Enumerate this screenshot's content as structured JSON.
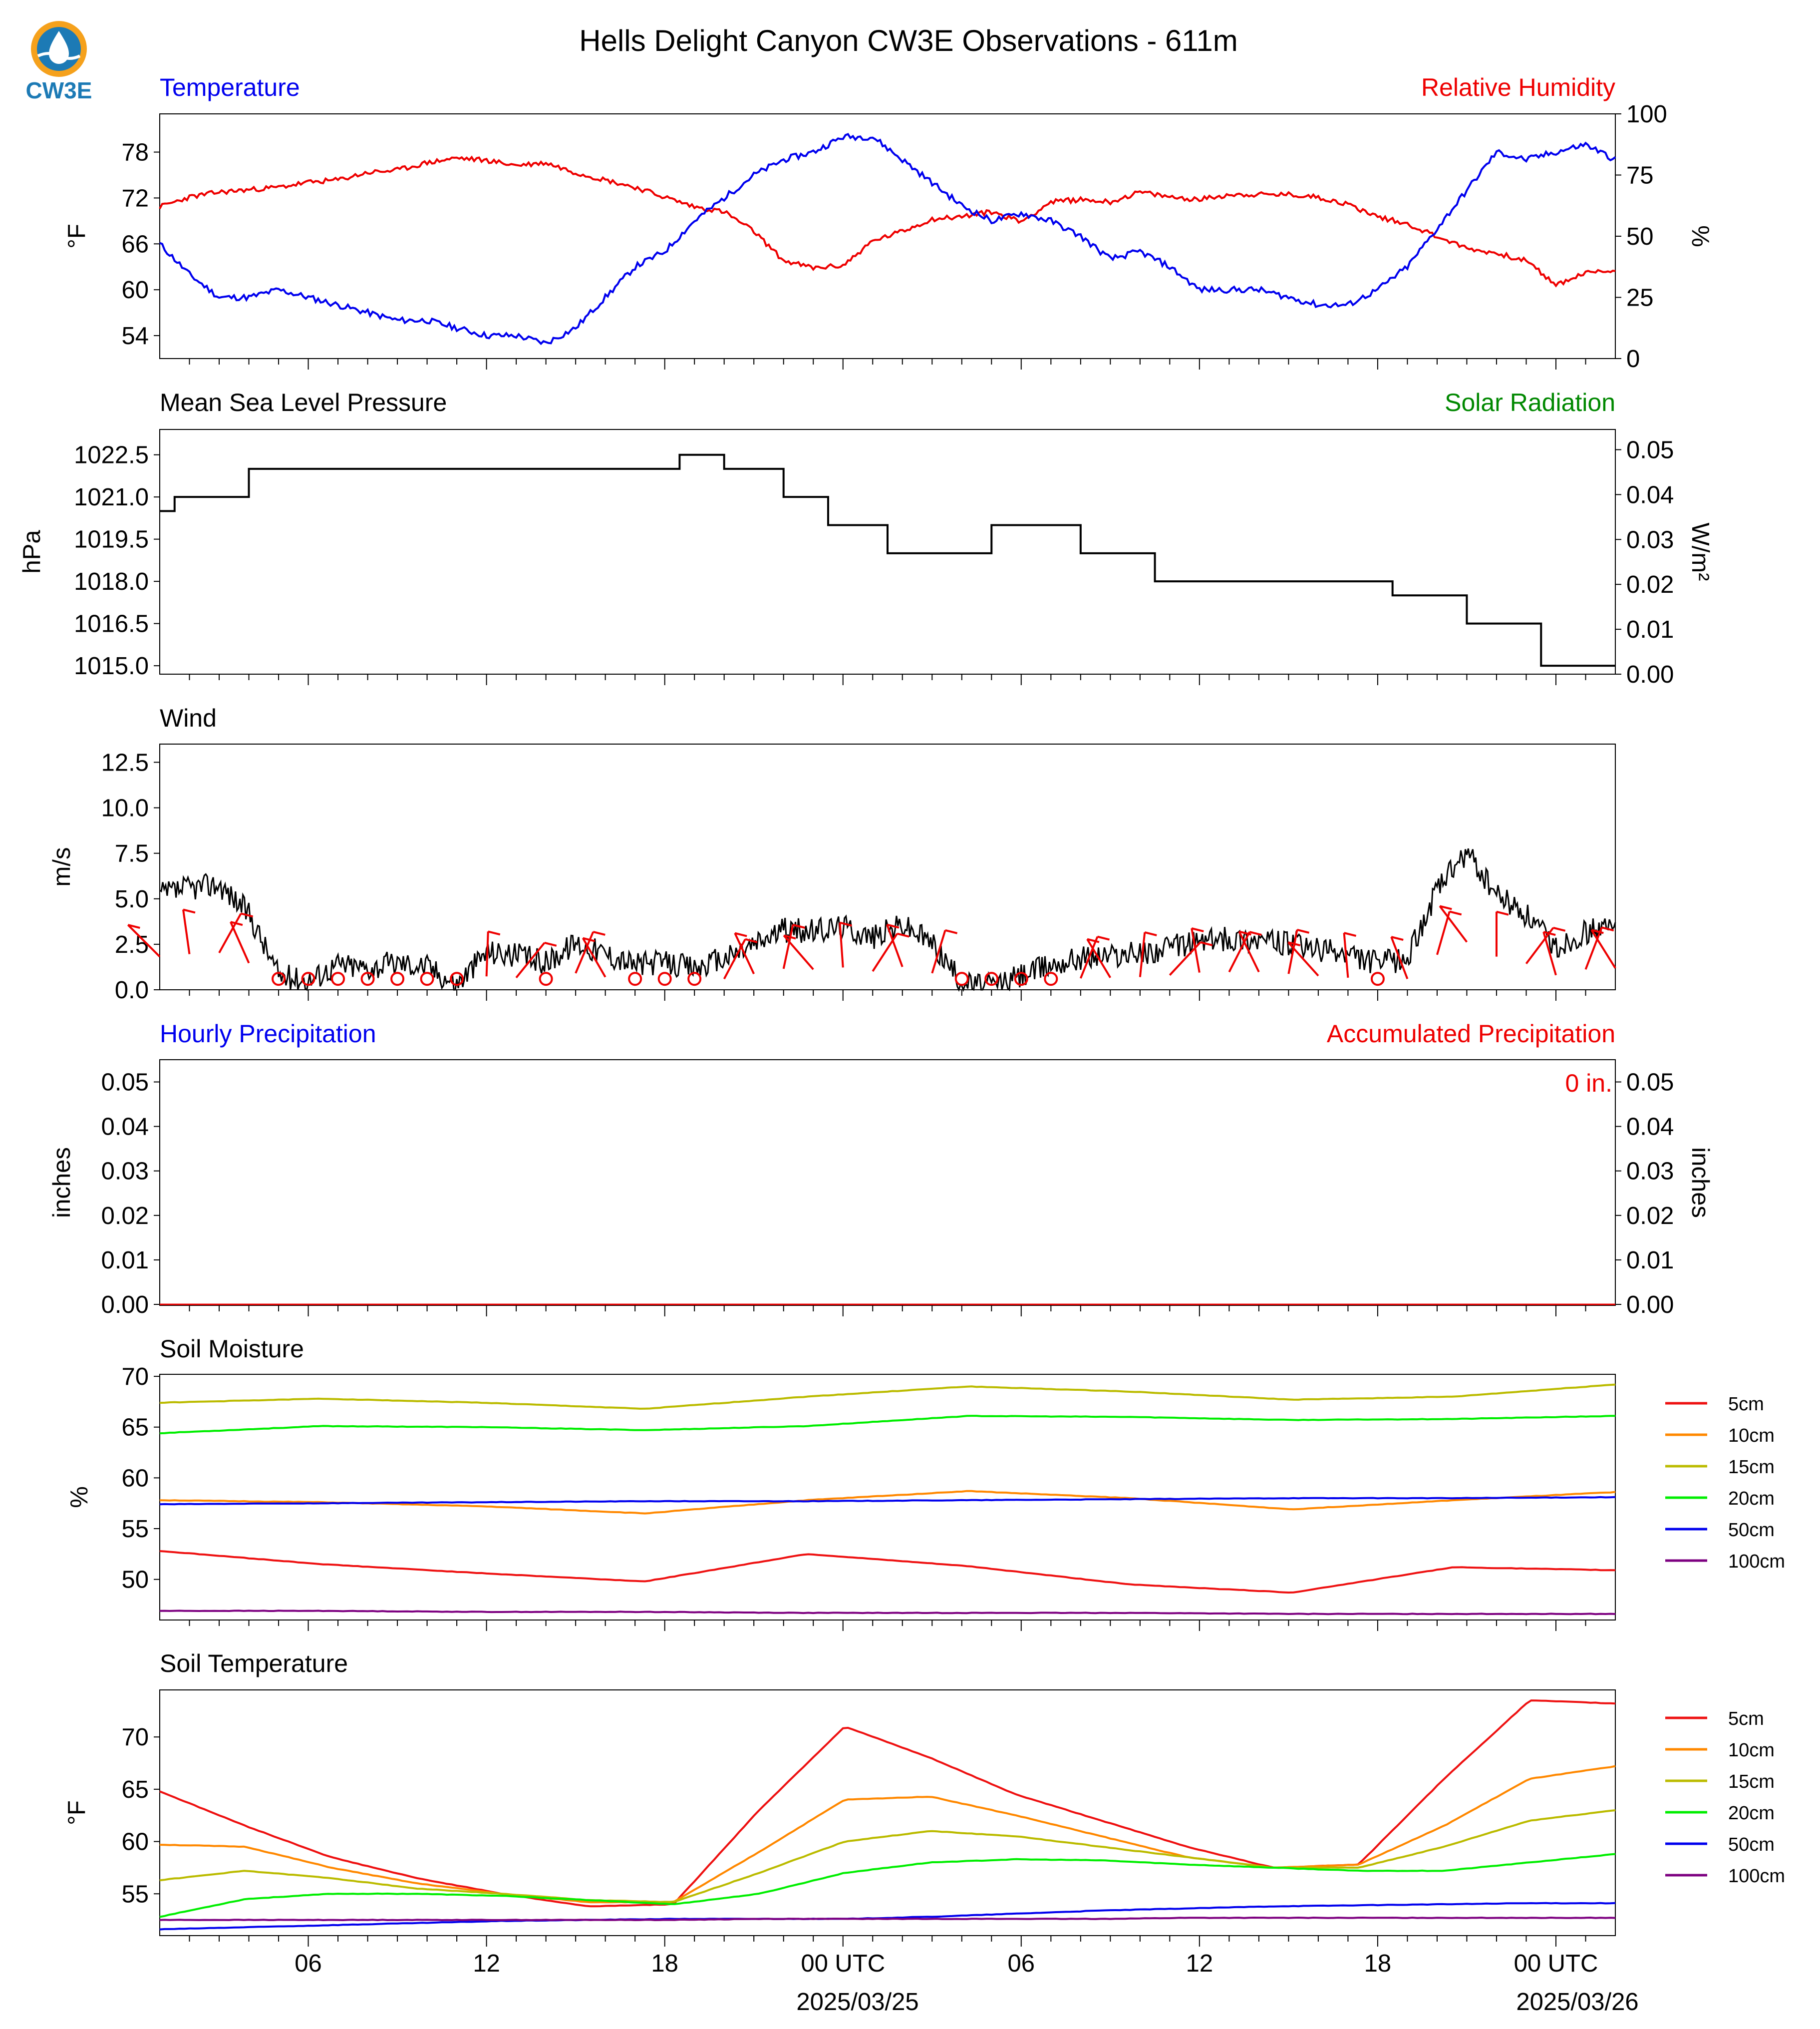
{
  "title": "Hells Delight Canyon CW3E Observations - 611m",
  "logo_text": "CW3E",
  "x_axis": {
    "tick_labels": [
      "06",
      "12",
      "18",
      "00 UTC",
      "06",
      "12",
      "18",
      "00 UTC"
    ],
    "date_labels": [
      "2025/03/25",
      "2025/03/26"
    ]
  },
  "colors": {
    "blue": "#0000ee",
    "red": "#ee0000",
    "green": "#008800",
    "black": "#000000"
  },
  "chart_data": [
    {
      "type": "line",
      "title_left": "Temperature",
      "title_right": "Relative Humidity",
      "ylabel": "°F",
      "ylabel2": "%",
      "ylim": [
        51,
        83
      ],
      "ylim2": [
        0,
        100
      ],
      "yticks": [
        54,
        60,
        66,
        72,
        78
      ],
      "yticks2": [
        0,
        25,
        50,
        75,
        100
      ],
      "x_hours": [
        0,
        1,
        2,
        3,
        4,
        5,
        6,
        7,
        8,
        9,
        10,
        11,
        12,
        13,
        14,
        15,
        16,
        17,
        18,
        19,
        20,
        21,
        22,
        23,
        24,
        25,
        26,
        27,
        28,
        29,
        30,
        31,
        32,
        33,
        34,
        35,
        36,
        37,
        38,
        39,
        40,
        41,
        42,
        43,
        44,
        45,
        46,
        47,
        48,
        49
      ],
      "series": [
        {
          "name": "Temperature",
          "color": "#0000ee",
          "axis": "left",
          "values": [
            66,
            62,
            59,
            59,
            60,
            59,
            58,
            57,
            56,
            56,
            55,
            54,
            54,
            53,
            55,
            59,
            63,
            65,
            69,
            72,
            75,
            77,
            78,
            80,
            80,
            77,
            74,
            71,
            69,
            70,
            69,
            67,
            64,
            65,
            63,
            60,
            60,
            60,
            59,
            58,
            58,
            60,
            63,
            68,
            73,
            78,
            77,
            78,
            79,
            77
          ]
        },
        {
          "name": "Relative Humidity",
          "color": "#ee0000",
          "axis": "right",
          "values": [
            62,
            66,
            68,
            69,
            70,
            72,
            73,
            76,
            77,
            80,
            82,
            81,
            79,
            80,
            76,
            73,
            70,
            66,
            62,
            60,
            52,
            40,
            37,
            38,
            48,
            52,
            57,
            58,
            60,
            56,
            64,
            65,
            64,
            68,
            66,
            65,
            67,
            67,
            67,
            66,
            63,
            58,
            55,
            50,
            45,
            43,
            40,
            30,
            35,
            36
          ]
        }
      ]
    },
    {
      "type": "line",
      "title_left": "Mean Sea Level Pressure",
      "title_right": "Solar Radiation",
      "ylabel": "hPa",
      "ylabel2": "W/m²",
      "ylim": [
        1014.7,
        1023.4
      ],
      "ylim2": [
        0,
        0.0545
      ],
      "yticks": [
        "1015.0",
        "1016.5",
        "1018.0",
        "1019.5",
        "1021.0",
        "1022.5"
      ],
      "yticks2": [
        "0.00",
        "0.01",
        "0.02",
        "0.03",
        "0.04",
        "0.05"
      ],
      "series": [
        {
          "name": "Mean Sea Level Pressure",
          "color": "#000000",
          "steps": [
            [
              0,
              1020.5
            ],
            [
              0.5,
              1021.0
            ],
            [
              3,
              1022.0
            ],
            [
              17.5,
              1022.5
            ],
            [
              19,
              1022.0
            ],
            [
              21,
              1021.0
            ],
            [
              22.5,
              1020.0
            ],
            [
              24.5,
              1019.0
            ],
            [
              28,
              1020.0
            ],
            [
              31,
              1019.0
            ],
            [
              33.5,
              1018.0
            ],
            [
              41.5,
              1017.5
            ],
            [
              44,
              1016.5
            ],
            [
              46.5,
              1015.0
            ],
            [
              49,
              1015.0
            ]
          ]
        }
      ]
    },
    {
      "type": "line",
      "title_left": "Wind",
      "ylabel": "m/s",
      "ylim": [
        0,
        13.5
      ],
      "yticks": [
        "0.0",
        "2.5",
        "5.0",
        "7.5",
        "10.0",
        "12.5"
      ],
      "series": [
        {
          "name": "Wind speed",
          "color": "#000000",
          "values": [
            5.2,
            5.6,
            5.8,
            4.2,
            0.8,
            0.5,
            1.4,
            1.2,
            1.5,
            1.3,
            0.3,
            2.1,
            1.9,
            1.5,
            2.6,
            2.0,
            1.4,
            1.5,
            1.2,
            1.7,
            2.5,
            3.3,
            3.2,
            3.5,
            2.9,
            3.6,
            2.6,
            0.4,
            0.2,
            0.8,
            1.4,
            1.8,
            1.9,
            2.0,
            2.3,
            2.7,
            2.8,
            2.8,
            2.5,
            2.2,
            1.9,
            1.5,
            1.7,
            5.5,
            7.5,
            5.2,
            4.1,
            2.3,
            3.2,
            3.4
          ]
        }
      ]
    },
    {
      "type": "bar",
      "title_left": "Hourly Precipitation",
      "title_right": "Accumulated Precipitation",
      "accumulated_label": "0 in.",
      "ylabel": "inches",
      "ylabel2": "inches",
      "ylim": [
        0,
        0.055
      ],
      "yticks": [
        "0.00",
        "0.01",
        "0.02",
        "0.03",
        "0.04",
        "0.05"
      ],
      "values": "all 0.00"
    },
    {
      "type": "line",
      "title_left": "Soil Moisture",
      "ylabel": "%",
      "ylim": [
        46,
        70.2
      ],
      "yticks": [
        50,
        55,
        60,
        65,
        70
      ],
      "legend": [
        "5cm",
        "10cm",
        "15cm",
        "20cm",
        "50cm",
        "100cm"
      ],
      "series": [
        {
          "name": "5cm",
          "color": "#ee1111",
          "values": [
            52.8,
            51.5,
            50.6,
            49.8,
            52.5,
            51.3,
            49.5,
            48.7,
            51.2,
            50.9
          ]
        },
        {
          "name": "10cm",
          "color": "#ff8800",
          "values": [
            57.8,
            57.6,
            57.2,
            56.5,
            57.8,
            58.7,
            58.0,
            56.9,
            57.8,
            58.6
          ]
        },
        {
          "name": "15cm",
          "color": "#bbbb00",
          "values": [
            67.4,
            67.8,
            67.4,
            66.8,
            68.0,
            69.0,
            68.5,
            67.7,
            68.0,
            69.2
          ]
        },
        {
          "name": "20cm",
          "color": "#00ee00",
          "values": [
            64.4,
            65.1,
            65.0,
            64.7,
            65.1,
            66.1,
            66.0,
            65.7,
            65.8,
            66.1
          ]
        },
        {
          "name": "50cm",
          "color": "#0000ee",
          "values": [
            57.4,
            57.5,
            57.6,
            57.7,
            57.7,
            57.8,
            57.9,
            58.0,
            58.0,
            58.1
          ]
        },
        {
          "name": "100cm",
          "color": "#7d0080",
          "values": [
            46.9,
            46.9,
            46.8,
            46.8,
            46.7,
            46.7,
            46.7,
            46.6,
            46.6,
            46.6
          ]
        }
      ]
    },
    {
      "type": "line",
      "title_left": "Soil Temperature",
      "ylabel": "°F",
      "ylim": [
        51,
        74.5
      ],
      "yticks": [
        55,
        60,
        65,
        70
      ],
      "legend": [
        "5cm",
        "10cm",
        "15cm",
        "20cm",
        "50cm",
        "100cm"
      ],
      "series": [
        {
          "name": "5cm",
          "color": "#ee1111",
          "values": [
            64.8,
            61.5,
            58.5,
            56.5,
            55.0,
            53.8,
            54.0,
            63.0,
            71.0,
            68.0,
            64.5,
            62.0,
            59.5,
            57.5,
            57.8,
            66.0,
            73.5,
            73.2
          ]
        },
        {
          "name": "10cm",
          "color": "#ff8800",
          "values": [
            59.7,
            59.5,
            57.5,
            56.0,
            55.0,
            54.2,
            54.2,
            59.0,
            64.0,
            64.3,
            62.5,
            60.5,
            58.5,
            57.5,
            57.8,
            61.5,
            66.0,
            67.2
          ]
        },
        {
          "name": "15cm",
          "color": "#bbbb00",
          "values": [
            56.3,
            57.2,
            56.5,
            55.5,
            55.0,
            54.4,
            54.2,
            57.0,
            60.0,
            61.0,
            60.5,
            59.5,
            58.5,
            57.5,
            57.5,
            59.5,
            62.0,
            63.0
          ]
        },
        {
          "name": "20cm",
          "color": "#00ee00",
          "values": [
            52.8,
            54.5,
            55.0,
            55.0,
            54.8,
            54.4,
            54.0,
            55.0,
            57.0,
            58.0,
            58.3,
            58.2,
            57.8,
            57.5,
            57.2,
            57.2,
            58.0,
            58.8
          ]
        },
        {
          "name": "50cm",
          "color": "#0000ee",
          "values": [
            51.6,
            51.8,
            52.0,
            52.2,
            52.4,
            52.5,
            52.6,
            52.6,
            52.6,
            52.8,
            53.1,
            53.4,
            53.6,
            53.8,
            53.9,
            54.0,
            54.1,
            54.1
          ]
        },
        {
          "name": "100cm",
          "color": "#7d0080",
          "values": [
            52.5,
            52.5,
            52.5,
            52.5,
            52.5,
            52.5,
            52.5,
            52.6,
            52.6,
            52.6,
            52.6,
            52.6,
            52.7,
            52.7,
            52.7,
            52.7,
            52.7,
            52.7
          ]
        }
      ]
    }
  ]
}
